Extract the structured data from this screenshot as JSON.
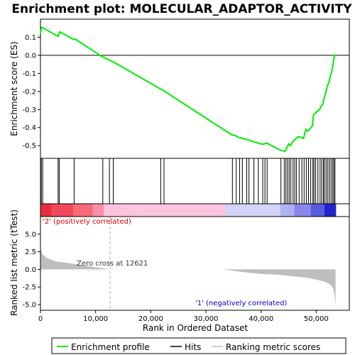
{
  "chart_data": {
    "type": "line",
    "title": "Enrichment plot: MOLECULAR_ADAPTOR_ACTIVITY",
    "panels": {
      "enrichment": {
        "ylabel": "Enrichment score (ES)",
        "ylim": [
          -0.57,
          0.2
        ],
        "yticks": [
          -0.5,
          -0.4,
          -0.3,
          -0.2,
          -0.1,
          0.0,
          0.1
        ],
        "ytick_labels": [
          "-0.5",
          "-0.4",
          "-0.3",
          "-0.2",
          "-0.1",
          "0.0",
          "0.1"
        ]
      },
      "ranked_metric": {
        "ylabel": "Ranked list metric (tTest)",
        "xlabel": "Rank in Ordered Dataset",
        "ylim": [
          -5.8,
          7.5
        ],
        "yticks": [
          -5.0,
          -2.5,
          0.0,
          2.5,
          5.0
        ],
        "ytick_labels": [
          "-5.0",
          "-2.5",
          "0.0",
          "2.5",
          "5.0"
        ],
        "zero_cross_label": "Zero cross at 12621",
        "zero_cross_rank": 12621,
        "positive_label": "'2' (positively correlated)",
        "negative_label": "'1' (negatively correlated)"
      }
    },
    "xlim": [
      0,
      56000
    ],
    "xticks": [
      0,
      10000,
      20000,
      30000,
      40000,
      50000
    ],
    "xtick_labels": [
      "0",
      "10,000",
      "20,000",
      "30,000",
      "40,000",
      "50,000"
    ],
    "series": [
      {
        "name": "Enrichment profile",
        "color": "#00ee00",
        "x": [
          0,
          200,
          400,
          3200,
          3500,
          6000,
          6300,
          11200,
          12400,
          13100,
          21700,
          22300,
          34700,
          35400,
          36000,
          36500,
          37300,
          37700,
          38600,
          39400,
          40200,
          40600,
          41000,
          43500,
          44100,
          44400,
          44700,
          45000,
          45300,
          45700,
          46000,
          46300,
          46800,
          47300,
          47700,
          48100,
          48500,
          48900,
          49300,
          49500,
          49800,
          50200,
          50600,
          50900,
          51200,
          51400,
          51700,
          52000,
          52300,
          52600,
          52900,
          53100,
          53300,
          53500
        ],
        "y": [
          0.12,
          0.155,
          0.153,
          0.105,
          0.13,
          0.088,
          0.09,
          -0.008,
          -0.025,
          -0.035,
          -0.185,
          -0.195,
          -0.44,
          -0.445,
          -0.455,
          -0.458,
          -0.465,
          -0.468,
          -0.478,
          -0.485,
          -0.492,
          -0.49,
          -0.485,
          -0.525,
          -0.53,
          -0.53,
          -0.51,
          -0.49,
          -0.5,
          -0.48,
          -0.47,
          -0.46,
          -0.45,
          -0.455,
          -0.46,
          -0.41,
          -0.42,
          -0.405,
          -0.39,
          -0.33,
          -0.32,
          -0.31,
          -0.3,
          -0.28,
          -0.27,
          -0.24,
          -0.21,
          -0.17,
          -0.15,
          -0.11,
          -0.08,
          -0.04,
          0.0,
          0.005
        ]
      }
    ],
    "hits": [
      150,
      400,
      3200,
      3400,
      6100,
      11300,
      12500,
      13200,
      21800,
      22400,
      34800,
      35500,
      36100,
      36600,
      37400,
      37800,
      38700,
      39500,
      40300,
      40700,
      41100,
      43600,
      44200,
      44500,
      44800,
      45100,
      45400,
      45800,
      46100,
      46400,
      46900,
      47400,
      47800,
      48200,
      48600,
      49000,
      49400,
      49600,
      49900,
      50300,
      50700,
      51000,
      51300,
      51500,
      51800,
      52100,
      52400,
      52700,
      53000,
      53200,
      53400
    ],
    "legend": [
      "Enrichment profile",
      "Hits",
      "Ranking metric scores"
    ],
    "colors": {
      "enrichment_line": "#00ee00",
      "zero_line": "#000000",
      "hit_line": "#000000",
      "metric_fill": "#bebebe",
      "positive_text": "#cc0000",
      "negative_text": "#0000cc",
      "zero_cross_line": "#aaaaaa"
    },
    "color_bar": [
      {
        "from": 0,
        "to": 2000,
        "color": "#e8303c"
      },
      {
        "from": 2000,
        "to": 6000,
        "color": "#f04a5a"
      },
      {
        "from": 6000,
        "to": 9500,
        "color": "#f66a7a"
      },
      {
        "from": 9500,
        "to": 11500,
        "color": "#f890a5"
      },
      {
        "from": 11500,
        "to": 33500,
        "color": "#ffc4e0"
      },
      {
        "from": 33500,
        "to": 43500,
        "color": "#d4d4fa"
      },
      {
        "from": 43500,
        "to": 46000,
        "color": "#b0b0f4"
      },
      {
        "from": 46000,
        "to": 49000,
        "color": "#8888ec"
      },
      {
        "from": 49000,
        "to": 51500,
        "color": "#5a5ae0"
      },
      {
        "from": 51500,
        "to": 53600,
        "color": "#2222cc"
      }
    ],
    "metric": {
      "x": [
        0,
        300,
        1000,
        2000,
        3000,
        5000,
        8000,
        10000,
        12621,
        20000,
        33000,
        34000,
        37000,
        40000,
        43000,
        46000,
        48000,
        50000,
        51500,
        52500,
        53000,
        53300,
        53500
      ],
      "y": [
        3.1,
        2.2,
        1.7,
        1.35,
        1.1,
        0.9,
        0.55,
        0.3,
        0.0,
        0.0,
        0.0,
        -0.1,
        -0.4,
        -0.65,
        -0.75,
        -1.0,
        -1.15,
        -1.45,
        -1.75,
        -2.1,
        -2.6,
        -3.4,
        -5.3
      ]
    }
  }
}
